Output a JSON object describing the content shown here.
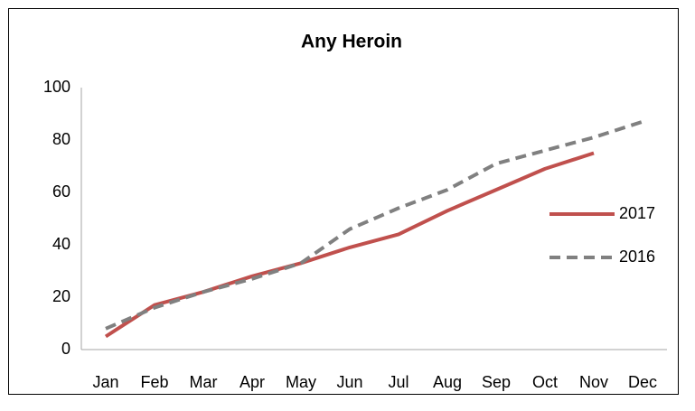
{
  "chart_data": {
    "type": "line",
    "title": "Any Heroin",
    "categories": [
      "Jan",
      "Feb",
      "Mar",
      "Apr",
      "May",
      "Jun",
      "Jul",
      "Aug",
      "Sep",
      "Oct",
      "Nov",
      "Dec"
    ],
    "series": [
      {
        "name": "2017",
        "color": "#c0504d",
        "dash": false,
        "values": [
          5,
          17,
          22,
          28,
          33,
          39,
          44,
          53,
          61,
          69,
          75,
          null
        ]
      },
      {
        "name": "2016",
        "color": "#808080",
        "dash": true,
        "values": [
          8,
          16,
          22,
          27,
          33,
          46,
          54,
          61,
          71,
          76,
          81,
          87
        ]
      }
    ],
    "ylim": [
      0,
      100
    ],
    "yticks": [
      0,
      20,
      40,
      60,
      80,
      100
    ],
    "grid": false,
    "legend": "right"
  }
}
